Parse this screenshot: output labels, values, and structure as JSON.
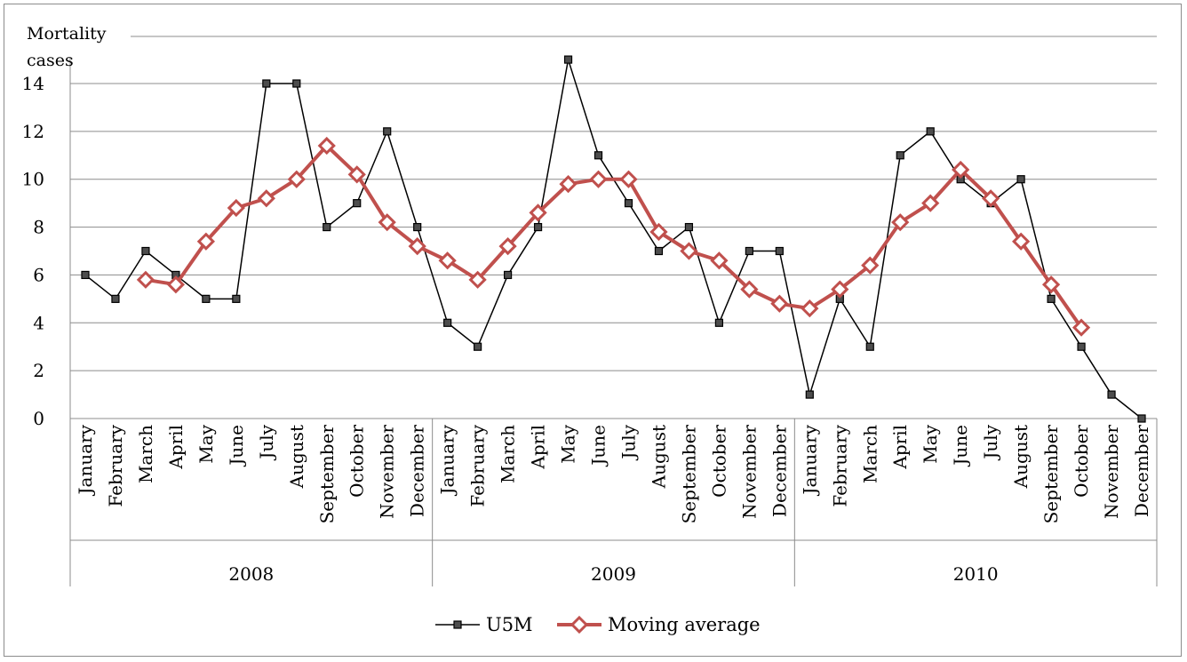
{
  "chart_data": {
    "type": "line",
    "ylabel_line1": "Mortality",
    "ylabel_line2": "cases",
    "ylim": [
      0,
      14
    ],
    "y_ticks": [
      0,
      2,
      4,
      6,
      8,
      10,
      12,
      14
    ],
    "grid": true,
    "legend_position": "bottom",
    "categories": [
      "January",
      "February",
      "March",
      "April",
      "May",
      "June",
      "July",
      "August",
      "September",
      "October",
      "November",
      "December",
      "January",
      "February",
      "March",
      "April",
      "May",
      "June",
      "July",
      "August",
      "September",
      "October",
      "November",
      "December",
      "January",
      "February",
      "March",
      "April",
      "May",
      "June",
      "July",
      "August",
      "September",
      "October",
      "November",
      "December"
    ],
    "groups": [
      {
        "label": "2008",
        "count": 12
      },
      {
        "label": "2009",
        "count": 12
      },
      {
        "label": "2010",
        "count": 12
      }
    ],
    "series": [
      {
        "name": "U5M",
        "color": "#000000",
        "marker": "square",
        "values": [
          6,
          5,
          7,
          6,
          5,
          5,
          14,
          14,
          8,
          9,
          12,
          8,
          4,
          3,
          6,
          8,
          15,
          11,
          9,
          7,
          8,
          4,
          7,
          7,
          1,
          5,
          3,
          11,
          12,
          10,
          9,
          10,
          5,
          3,
          1,
          0
        ]
      },
      {
        "name": "Moving average",
        "color": "#c0504d",
        "marker": "diamond",
        "values": [
          null,
          null,
          5.8,
          5.6,
          7.4,
          8.8,
          9.2,
          10,
          11.4,
          10.2,
          8.2,
          7.2,
          6.6,
          5.8,
          7.2,
          8.6,
          9.8,
          10,
          10,
          7.8,
          7,
          6.6,
          5.4,
          4.8,
          4.6,
          5.4,
          6.4,
          8.2,
          9,
          10.4,
          9.2,
          7.4,
          5.6,
          3.8,
          null,
          null
        ]
      }
    ]
  }
}
